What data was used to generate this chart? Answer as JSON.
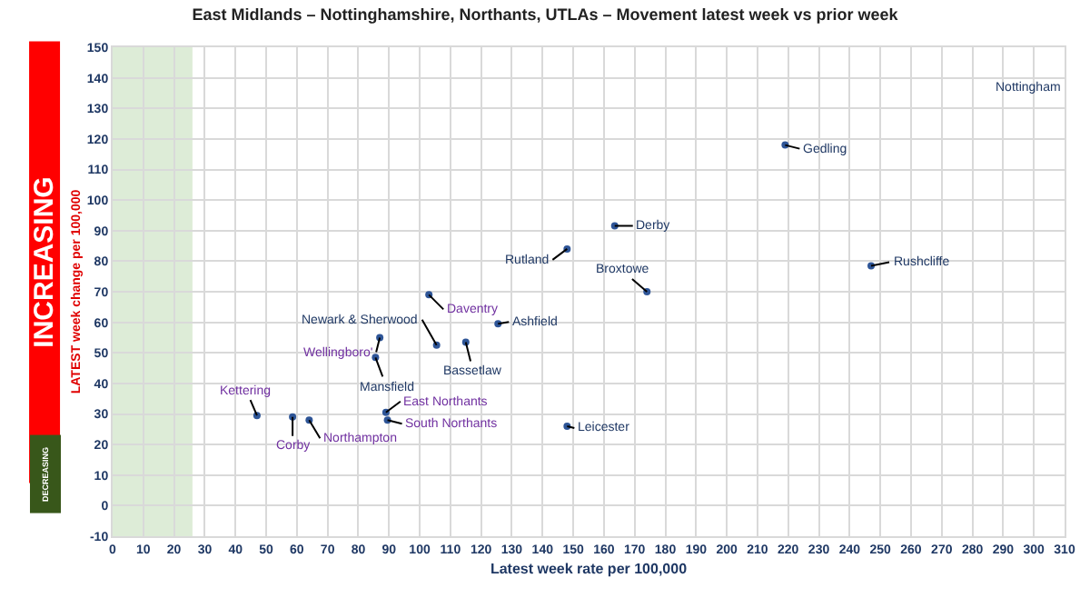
{
  "chart_data": {
    "type": "scatter",
    "title": "East Midlands – Nottinghamshire, Northants, UTLAs – Movement latest week vs prior week",
    "xlabel": "Latest week rate per 100,000",
    "ylabel": "LATEST week change per 100,000",
    "x": [
      219,
      163.5,
      247,
      174,
      148,
      148,
      103,
      105.5,
      125.5,
      115,
      87,
      85.6,
      47,
      58.6,
      64,
      89,
      89.5
    ],
    "series": [
      {
        "color": "#2e5597",
        "values": [
          118,
          91.6,
          78.5,
          70,
          84,
          26,
          69,
          52.5,
          59.5,
          53.5,
          55,
          48.5,
          29.5,
          29,
          28,
          30.5,
          28
        ]
      }
    ],
    "xlim": [
      0,
      310
    ],
    "xticks": [
      0,
      10,
      20,
      30,
      40,
      50,
      60,
      70,
      80,
      90,
      100,
      110,
      120,
      130,
      140,
      150,
      160,
      170,
      180,
      190,
      200,
      210,
      220,
      230,
      240,
      250,
      260,
      270,
      280,
      290,
      300,
      310
    ],
    "ylim": [
      -10,
      150
    ],
    "yticks": [
      -10,
      0,
      10,
      20,
      30,
      40,
      50,
      60,
      70,
      80,
      90,
      100,
      110,
      120,
      130,
      140,
      150
    ],
    "grid": true,
    "marker": "circle",
    "bands": [
      {
        "axis": "x",
        "from": 0,
        "to": 26,
        "color": "#d9ead3"
      }
    ],
    "annotations": [
      "Nottingham",
      {
        "text": "Gedling",
        "x": 219,
        "y": 118
      },
      {
        "text": "Derby",
        "x": 163.5,
        "y": 91.6
      },
      {
        "text": "Rushcliffe",
        "x": 247,
        "y": 78.5
      },
      {
        "text": "Broxtowe",
        "x": 174,
        "y": 70
      },
      {
        "text": "Rutland",
        "x": 148,
        "y": 84
      },
      {
        "text": "Leicester",
        "x": 148,
        "y": 26
      },
      {
        "text": "Daventry",
        "x": 103,
        "y": 69
      },
      {
        "text": "Newark & Sherwood",
        "x": 105.5,
        "y": 52.5
      },
      {
        "text": "Ashfield",
        "x": 125.5,
        "y": 59.5
      },
      {
        "text": "Bassetlaw",
        "x": 115,
        "y": 53.5
      },
      {
        "text": "Wellingboro'",
        "x": 87,
        "y": 55
      },
      {
        "text": "Mansfield",
        "x": 85.6,
        "y": 48.5
      },
      {
        "text": "Kettering",
        "x": 47,
        "y": 29.5
      },
      {
        "text": "Corby",
        "x": 58.6,
        "y": 29
      },
      {
        "text": "Northampton",
        "x": 64,
        "y": 28
      },
      {
        "text": "East Northants",
        "x": 89,
        "y": 30.5
      },
      {
        "text": "South Northants",
        "x": 89.5,
        "y": 28
      },
      "INCREASING",
      "DECREASING"
    ]
  }
}
